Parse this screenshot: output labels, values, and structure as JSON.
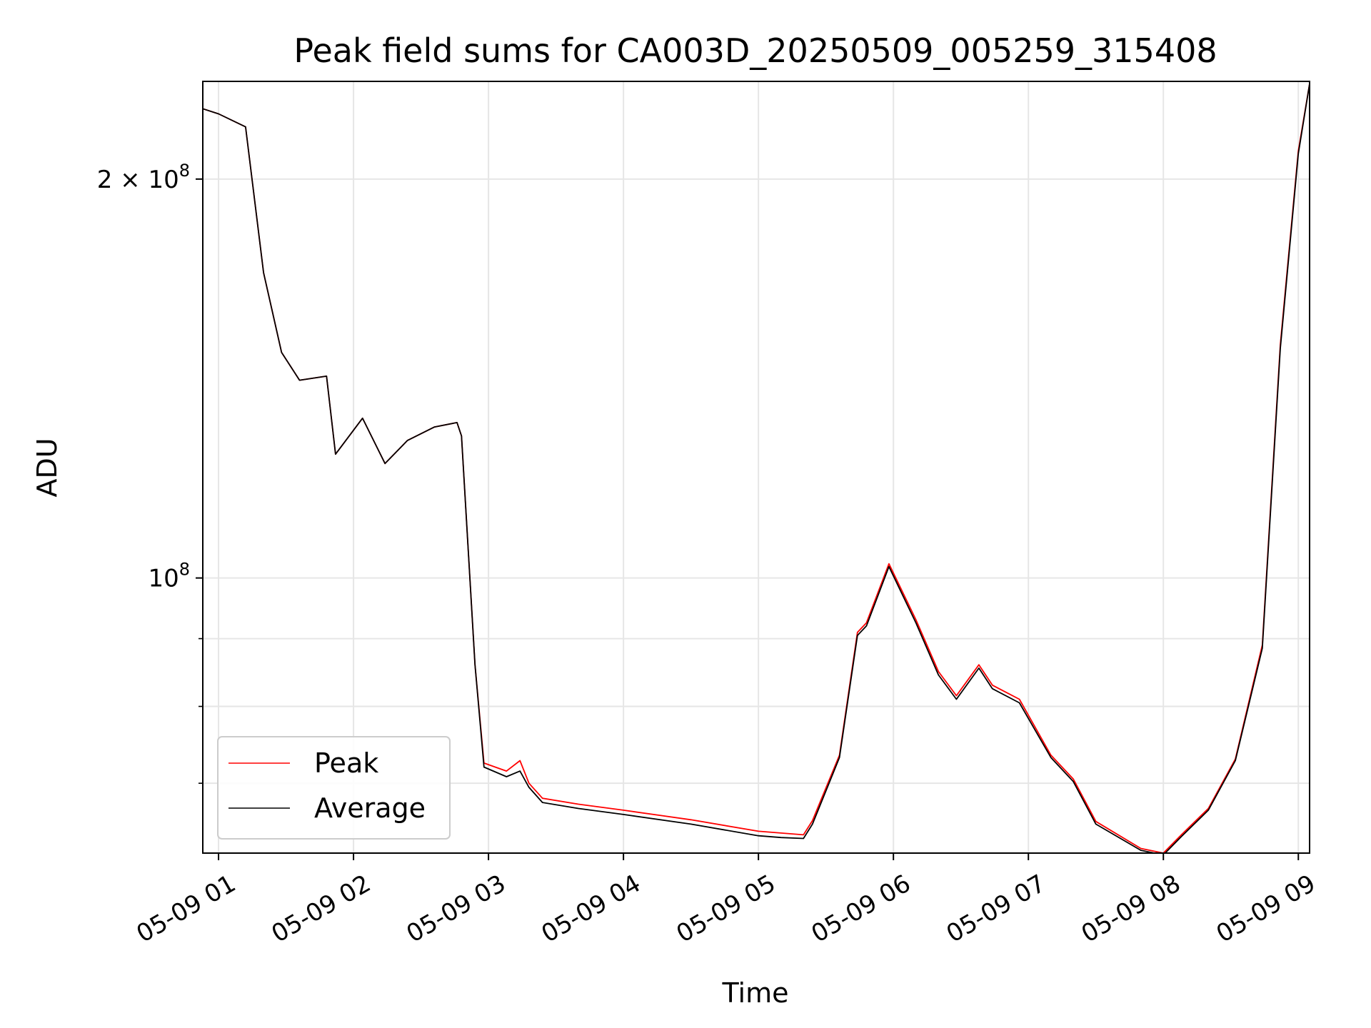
{
  "chart_data": {
    "type": "line",
    "title": "Peak field sums for CA003D_20250509_005259_315408",
    "xlabel": "Time",
    "ylabel": "ADU",
    "y_scale": "log",
    "grid": true,
    "legend_position": "lower-left",
    "xlim": [
      "2025-05-09 00:53",
      "2025-05-09 09:05"
    ],
    "ylim": [
      62000000,
      237000000
    ],
    "x_ticks": [
      "05-09 01",
      "05-09 02",
      "05-09 03",
      "05-09 04",
      "05-09 05",
      "05-09 06",
      "05-09 07",
      "05-09 08",
      "05-09 09"
    ],
    "y_ticks": [
      {
        "value": 100000000,
        "base": "10",
        "exp": "8",
        "prefix": ""
      },
      {
        "value": 200000000,
        "base": "10",
        "exp": "8",
        "prefix": "2 × "
      }
    ],
    "y_minor_ticks": [
      70000000,
      80000000,
      90000000
    ],
    "x": [
      "2025-05-09 00:53",
      "2025-05-09 01:00",
      "2025-05-09 01:12",
      "2025-05-09 01:20",
      "2025-05-09 01:28",
      "2025-05-09 01:36",
      "2025-05-09 01:48",
      "2025-05-09 01:52",
      "2025-05-09 02:04",
      "2025-05-09 02:14",
      "2025-05-09 02:24",
      "2025-05-09 02:36",
      "2025-05-09 02:46",
      "2025-05-09 02:48",
      "2025-05-09 02:54",
      "2025-05-09 02:58",
      "2025-05-09 03:08",
      "2025-05-09 03:14",
      "2025-05-09 03:18",
      "2025-05-09 03:24",
      "2025-05-09 03:40",
      "2025-05-09 04:00",
      "2025-05-09 04:30",
      "2025-05-09 05:00",
      "2025-05-09 05:10",
      "2025-05-09 05:20",
      "2025-05-09 05:24",
      "2025-05-09 05:36",
      "2025-05-09 05:44",
      "2025-05-09 05:48",
      "2025-05-09 05:58",
      "2025-05-09 06:10",
      "2025-05-09 06:20",
      "2025-05-09 06:28",
      "2025-05-09 06:38",
      "2025-05-09 06:44",
      "2025-05-09 06:56",
      "2025-05-09 07:10",
      "2025-05-09 07:20",
      "2025-05-09 07:30",
      "2025-05-09 07:50",
      "2025-05-09 08:00",
      "2025-05-09 08:08",
      "2025-05-09 08:20",
      "2025-05-09 08:32",
      "2025-05-09 08:44",
      "2025-05-09 08:52",
      "2025-05-09 09:00",
      "2025-05-09 09:05"
    ],
    "series": [
      {
        "name": "Peak",
        "color": "#ff0000",
        "values": [
          226000000,
          224000000,
          219000000,
          170000000,
          148000000,
          141000000,
          142000000,
          124000000,
          132000000,
          122000000,
          127000000,
          130000000,
          131000000,
          128000000,
          86000000,
          72500000,
          71500000,
          72800000,
          70000000,
          68200000,
          67500000,
          66800000,
          65700000,
          64400000,
          64200000,
          64000000,
          65600000,
          73500000,
          91000000,
          92500000,
          102500000,
          93000000,
          85000000,
          81500000,
          86000000,
          83000000,
          81000000,
          73500000,
          70500000,
          65500000,
          62500000,
          62000000,
          64000000,
          67000000,
          73000000,
          89000000,
          150000000,
          210000000,
          236000000
        ]
      },
      {
        "name": "Average",
        "color": "#000000",
        "values": [
          226000000,
          224000000,
          219000000,
          170000000,
          148000000,
          141000000,
          142000000,
          124000000,
          132000000,
          122000000,
          127000000,
          130000000,
          131000000,
          128000000,
          86000000,
          72000000,
          70800000,
          71500000,
          69500000,
          67700000,
          67000000,
          66300000,
          65200000,
          63900000,
          63700000,
          63600000,
          65200000,
          73200000,
          90500000,
          92000000,
          102000000,
          92500000,
          84500000,
          81000000,
          85500000,
          82500000,
          80500000,
          73200000,
          70200000,
          65200000,
          62300000,
          61800000,
          63800000,
          66800000,
          72800000,
          88500000,
          149000000,
          209000000,
          236000000
        ]
      }
    ]
  }
}
